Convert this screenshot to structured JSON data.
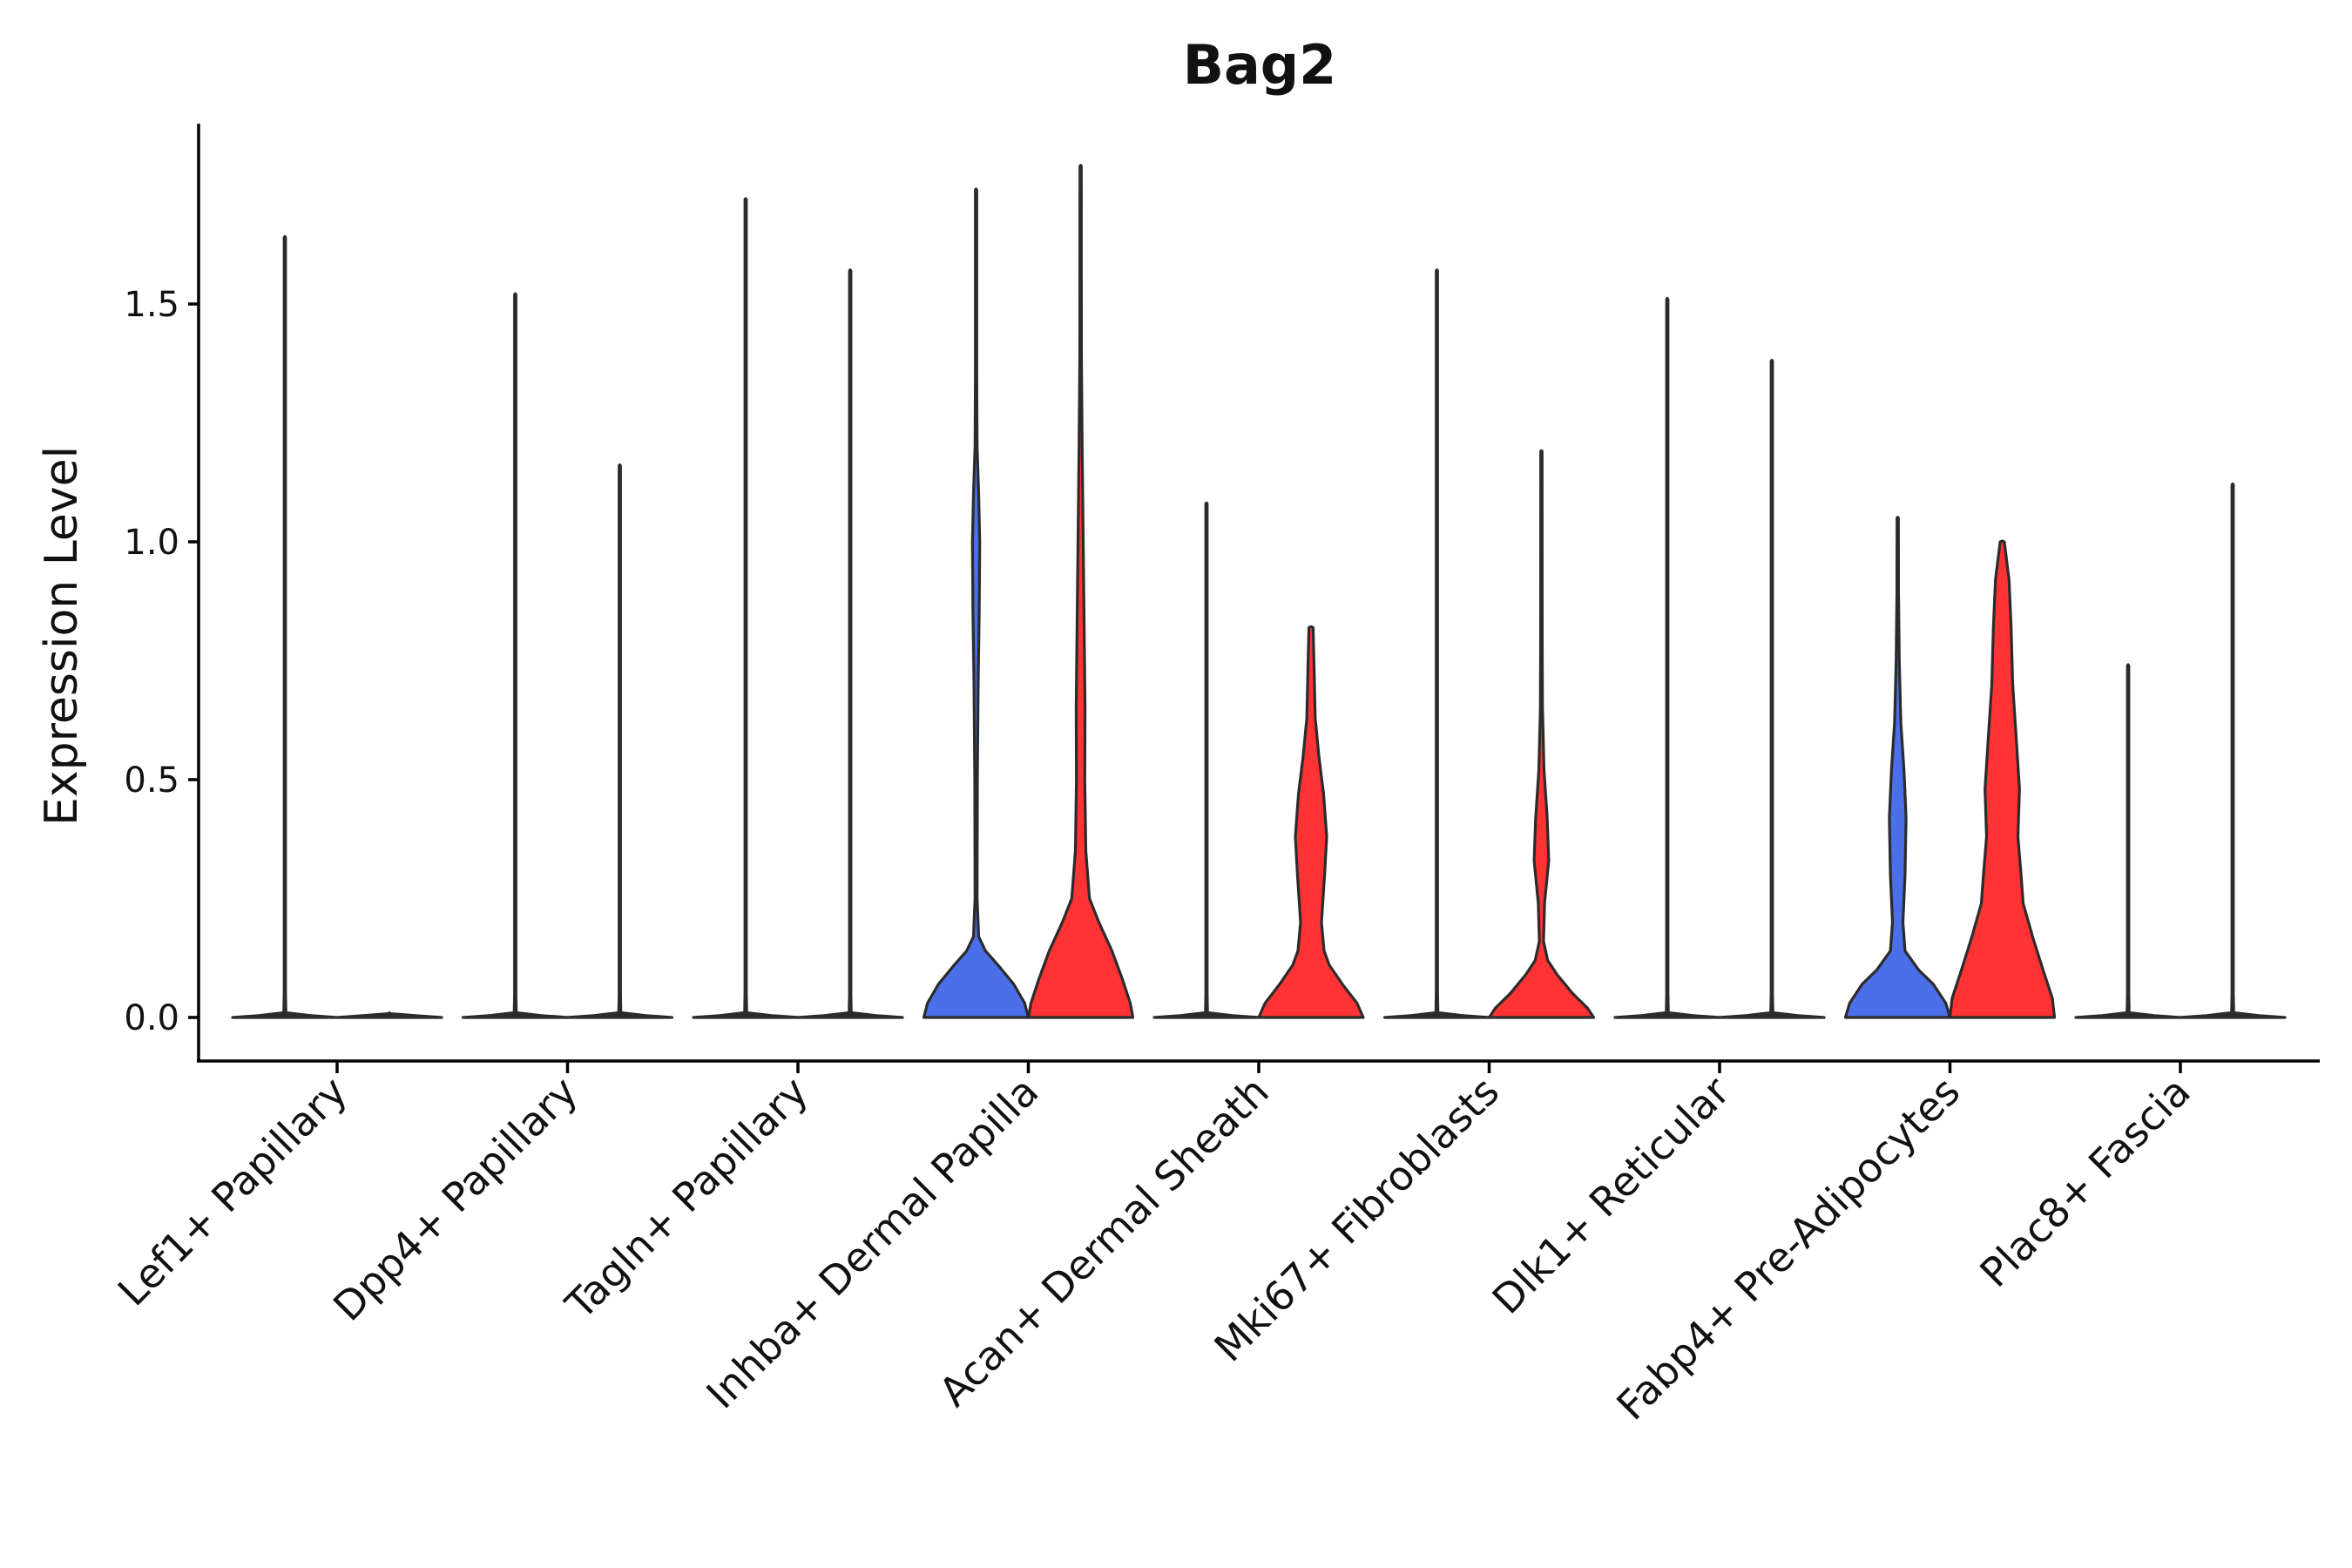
{
  "chart_data": {
    "type": "violin",
    "title": "Bag2",
    "xlabel": "",
    "ylabel": "Expression Level",
    "ylim": [
      -0.09,
      1.88
    ],
    "yticks": [
      "0.0",
      "0.5",
      "1.0",
      "1.5"
    ],
    "grid": false,
    "legend": "none",
    "series_colors": {
      "group1": "#4a6fe8",
      "group2": "#ff3333"
    },
    "categories": [
      "Lef1+ Papillary",
      "Dpp4+ Papillary",
      "Tagln+ Papillary",
      "Inhba+ Dermal Papilla",
      "Acan+ Dermal Sheath",
      "Mki67+ Fibroblasts",
      "Dlk1+ Reticular",
      "Fabp4+ Pre-Adipocytes",
      "Plac8+ Fascia"
    ],
    "violins": [
      {
        "category": "Lef1+ Papillary",
        "group": "group1",
        "max": 1.64,
        "profile": [
          [
            0,
            1
          ],
          [
            0.004,
            0.5
          ],
          [
            0.01,
            0.02
          ],
          [
            0.05,
            0.01
          ],
          [
            1.64,
            0.01
          ]
        ]
      },
      {
        "category": "Lef1+ Papillary",
        "group": "group2",
        "max": 0.0,
        "profile": [
          [
            0,
            1
          ],
          [
            0.004,
            0.5
          ],
          [
            0.008,
            0.02
          ]
        ]
      },
      {
        "category": "Dpp4+ Papillary",
        "group": "group1",
        "max": 1.52,
        "profile": [
          [
            0,
            1
          ],
          [
            0.004,
            0.5
          ],
          [
            0.01,
            0.02
          ],
          [
            0.05,
            0.01
          ],
          [
            1.52,
            0.01
          ]
        ]
      },
      {
        "category": "Dpp4+ Papillary",
        "group": "group2",
        "max": 1.16,
        "profile": [
          [
            0,
            1
          ],
          [
            0.004,
            0.5
          ],
          [
            0.01,
            0.02
          ],
          [
            0.05,
            0.01
          ],
          [
            1.16,
            0.01
          ]
        ]
      },
      {
        "category": "Tagln+ Papillary",
        "group": "group1",
        "max": 1.72,
        "profile": [
          [
            0,
            1
          ],
          [
            0.004,
            0.5
          ],
          [
            0.01,
            0.02
          ],
          [
            0.05,
            0.01
          ],
          [
            1.72,
            0.01
          ]
        ]
      },
      {
        "category": "Tagln+ Papillary",
        "group": "group2",
        "max": 1.57,
        "profile": [
          [
            0,
            1
          ],
          [
            0.004,
            0.5
          ],
          [
            0.01,
            0.02
          ],
          [
            0.05,
            0.01
          ],
          [
            1.57,
            0.01
          ]
        ]
      },
      {
        "category": "Inhba+ Dermal Papilla",
        "group": "group1",
        "max": 1.74,
        "profile": [
          [
            0,
            1
          ],
          [
            0.03,
            0.93
          ],
          [
            0.07,
            0.72
          ],
          [
            0.11,
            0.42
          ],
          [
            0.14,
            0.18
          ],
          [
            0.17,
            0.05
          ],
          [
            0.25,
            0.02
          ],
          [
            0.5,
            0.025
          ],
          [
            0.7,
            0.04
          ],
          [
            0.85,
            0.06
          ],
          [
            1.0,
            0.07
          ],
          [
            1.1,
            0.05
          ],
          [
            1.2,
            0.02
          ],
          [
            1.35,
            0.01
          ],
          [
            1.74,
            0.01
          ]
        ]
      },
      {
        "category": "Inhba+ Dermal Papilla",
        "group": "group2",
        "max": 1.79,
        "profile": [
          [
            0,
            1
          ],
          [
            0.03,
            0.95
          ],
          [
            0.08,
            0.8
          ],
          [
            0.14,
            0.6
          ],
          [
            0.2,
            0.35
          ],
          [
            0.25,
            0.17
          ],
          [
            0.35,
            0.1
          ],
          [
            0.5,
            0.08
          ],
          [
            0.65,
            0.085
          ],
          [
            0.8,
            0.07
          ],
          [
            1.0,
            0.05
          ],
          [
            1.2,
            0.03
          ],
          [
            1.4,
            0.015
          ],
          [
            1.79,
            0.01
          ]
        ]
      },
      {
        "category": "Acan+ Dermal Sheath",
        "group": "group1",
        "max": 1.08,
        "profile": [
          [
            0,
            1
          ],
          [
            0.004,
            0.5
          ],
          [
            0.01,
            0.02
          ],
          [
            0.05,
            0.01
          ],
          [
            1.08,
            0.01
          ]
        ]
      },
      {
        "category": "Acan+ Dermal Sheath",
        "group": "group2",
        "max": 0.82,
        "profile": [
          [
            0,
            1
          ],
          [
            0.03,
            0.88
          ],
          [
            0.07,
            0.6
          ],
          [
            0.11,
            0.35
          ],
          [
            0.14,
            0.25
          ],
          [
            0.2,
            0.2
          ],
          [
            0.3,
            0.26
          ],
          [
            0.38,
            0.3
          ],
          [
            0.47,
            0.24
          ],
          [
            0.55,
            0.15
          ],
          [
            0.63,
            0.08
          ],
          [
            0.73,
            0.06
          ],
          [
            0.82,
            0.04
          ]
        ]
      },
      {
        "category": "Mki67+ Fibroblasts",
        "group": "group1",
        "max": 1.57,
        "profile": [
          [
            0,
            1
          ],
          [
            0.004,
            0.5
          ],
          [
            0.01,
            0.02
          ],
          [
            0.05,
            0.01
          ],
          [
            1.57,
            0.01
          ]
        ]
      },
      {
        "category": "Mki67+ Fibroblasts",
        "group": "group2",
        "max": 1.19,
        "profile": [
          [
            0,
            1
          ],
          [
            0.02,
            0.88
          ],
          [
            0.05,
            0.6
          ],
          [
            0.09,
            0.3
          ],
          [
            0.12,
            0.12
          ],
          [
            0.16,
            0.04
          ],
          [
            0.24,
            0.06
          ],
          [
            0.33,
            0.14
          ],
          [
            0.42,
            0.11
          ],
          [
            0.52,
            0.05
          ],
          [
            0.65,
            0.02
          ],
          [
            0.8,
            0.015
          ],
          [
            1.19,
            0.01
          ]
        ]
      },
      {
        "category": "Dlk1+ Reticular",
        "group": "group1",
        "max": 1.51,
        "profile": [
          [
            0,
            1
          ],
          [
            0.004,
            0.5
          ],
          [
            0.01,
            0.02
          ],
          [
            0.05,
            0.01
          ],
          [
            1.51,
            0.01
          ]
        ]
      },
      {
        "category": "Dlk1+ Reticular",
        "group": "group2",
        "max": 1.38,
        "profile": [
          [
            0,
            1
          ],
          [
            0.004,
            0.5
          ],
          [
            0.01,
            0.02
          ],
          [
            0.05,
            0.01
          ],
          [
            1.38,
            0.01
          ]
        ]
      },
      {
        "category": "Fabp4+ Pre-Adipocytes",
        "group": "group1",
        "max": 1.05,
        "profile": [
          [
            0,
            1
          ],
          [
            0.03,
            0.92
          ],
          [
            0.07,
            0.68
          ],
          [
            0.1,
            0.4
          ],
          [
            0.14,
            0.14
          ],
          [
            0.2,
            0.1
          ],
          [
            0.3,
            0.14
          ],
          [
            0.42,
            0.16
          ],
          [
            0.52,
            0.12
          ],
          [
            0.62,
            0.06
          ],
          [
            0.75,
            0.03
          ],
          [
            0.9,
            0.015
          ],
          [
            1.05,
            0.01
          ]
        ]
      },
      {
        "category": "Fabp4+ Pre-Adipocytes",
        "group": "group2",
        "max": 1.0,
        "profile": [
          [
            0,
            1
          ],
          [
            0.04,
            0.96
          ],
          [
            0.1,
            0.78
          ],
          [
            0.17,
            0.58
          ],
          [
            0.24,
            0.4
          ],
          [
            0.3,
            0.36
          ],
          [
            0.38,
            0.3
          ],
          [
            0.48,
            0.33
          ],
          [
            0.6,
            0.26
          ],
          [
            0.7,
            0.2
          ],
          [
            0.82,
            0.17
          ],
          [
            0.92,
            0.13
          ],
          [
            1.0,
            0.04
          ]
        ]
      },
      {
        "category": "Plac8+ Fascia",
        "group": "group1",
        "max": 0.74,
        "profile": [
          [
            0,
            1
          ],
          [
            0.004,
            0.5
          ],
          [
            0.01,
            0.02
          ],
          [
            0.05,
            0.01
          ],
          [
            0.74,
            0.01
          ]
        ]
      },
      {
        "category": "Plac8+ Fascia",
        "group": "group2",
        "max": 1.12,
        "profile": [
          [
            0,
            1
          ],
          [
            0.004,
            0.5
          ],
          [
            0.01,
            0.02
          ],
          [
            0.05,
            0.01
          ],
          [
            1.12,
            0.01
          ]
        ]
      }
    ]
  }
}
